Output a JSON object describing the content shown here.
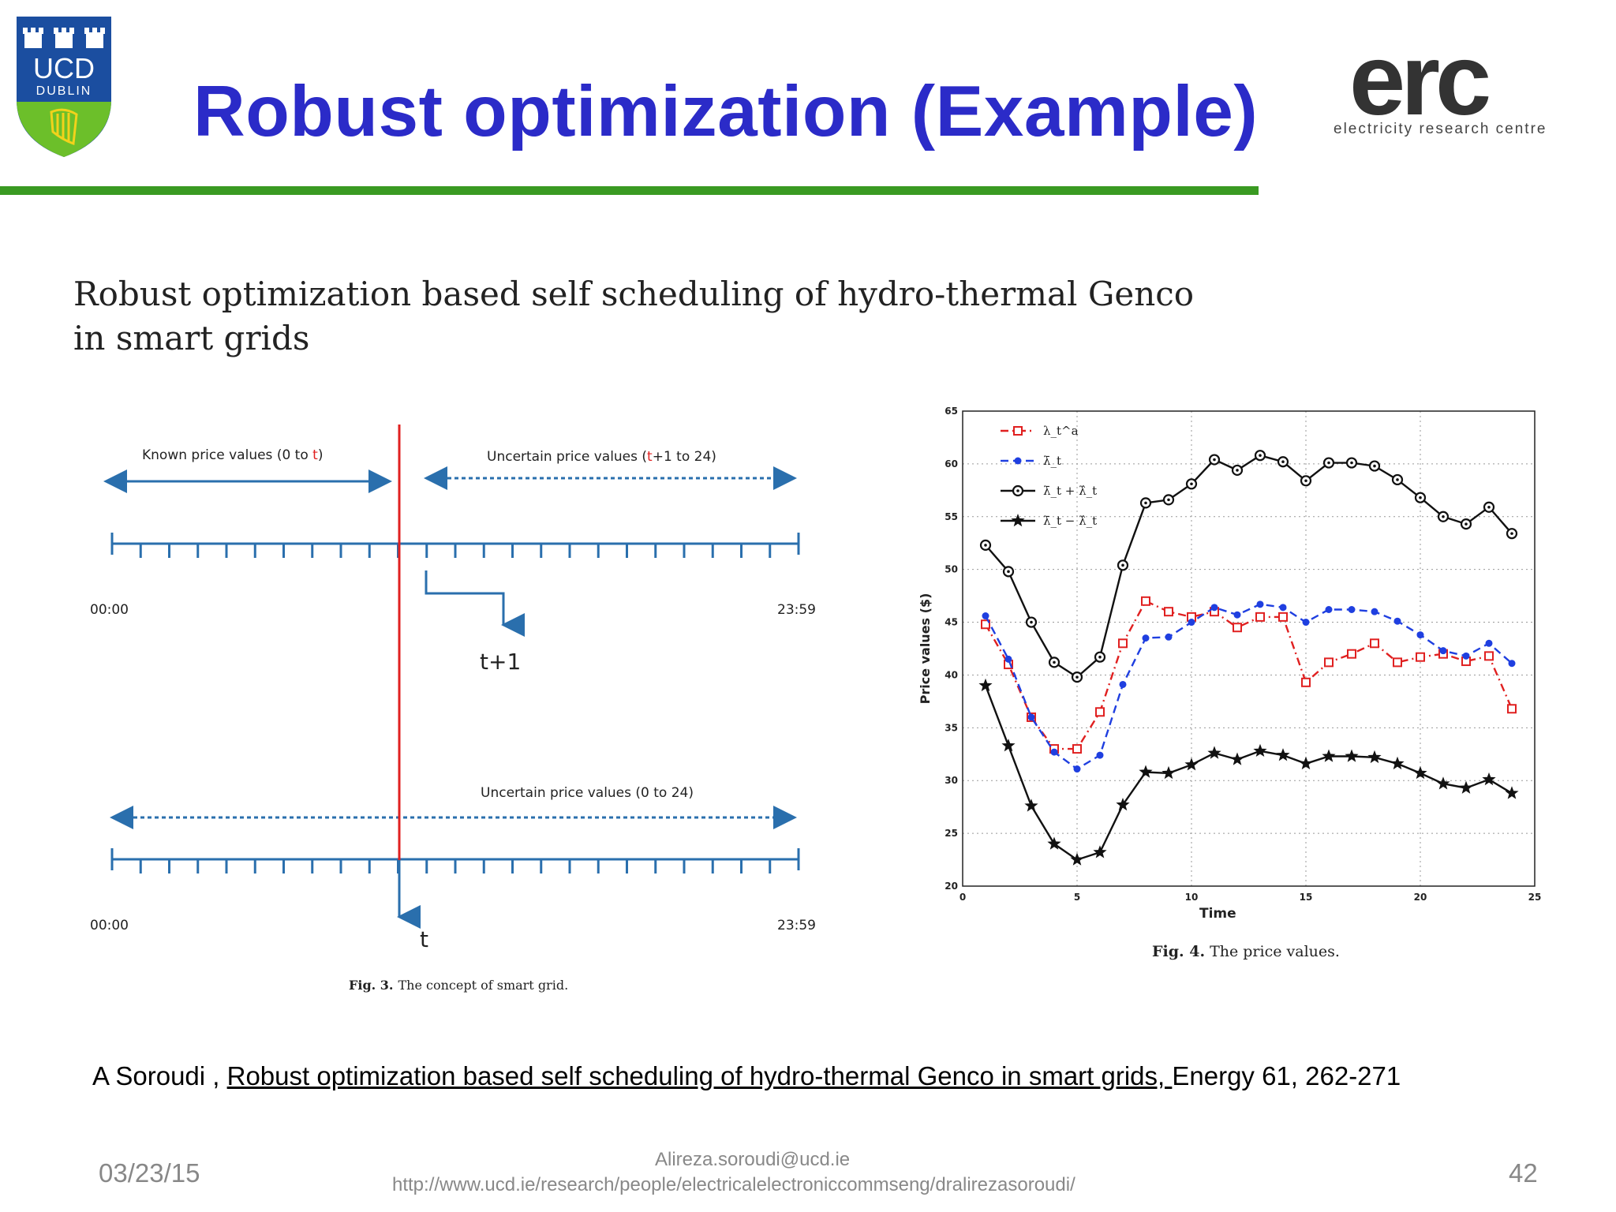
{
  "header": {
    "logo_text_main": "UCD",
    "logo_text_sub": "DUBLIN",
    "title": "Robust optimization (Example)",
    "erc_logo_word": "erc",
    "erc_logo_subtitle": "electricity research centre",
    "colors": {
      "title": "#2b2bc8",
      "rule": "#3a9a22",
      "ucd_blue": "#1b4ea0",
      "ucd_green": "#6cbf2a"
    }
  },
  "paper": {
    "title_line1": "Robust optimization based self scheduling of hydro-thermal Genco",
    "title_line2": "in smart grids"
  },
  "fig3": {
    "known_label": "Known price values (0 to ",
    "known_label_t": "t",
    "known_label_end": ")",
    "uncertain_top_label": "Uncertain price values (",
    "uncertain_top_label_t": "t",
    "uncertain_top_label_end": "+1 to 24)",
    "time_start": "00:00",
    "time_end": "23:59",
    "next_step_label": "t+1",
    "uncertain_bottom_label": "Uncertain price values (0 to 24)",
    "current_step_label": "t",
    "caption_bold": "Fig. 3.",
    "caption_text": "The concept of smart grid."
  },
  "fig4": {
    "caption_bold": "Fig. 4.",
    "caption_text": "The price values."
  },
  "chart_data": {
    "type": "line",
    "title": "",
    "xlabel": "Time",
    "ylabel": "Price values ($)",
    "xlim": [
      0,
      25
    ],
    "ylim": [
      20,
      65
    ],
    "xticks": [
      0,
      5,
      10,
      15,
      20,
      25
    ],
    "yticks": [
      20,
      25,
      30,
      35,
      40,
      45,
      50,
      55,
      60,
      65
    ],
    "grid": true,
    "legend_position": "top-left",
    "x": [
      1,
      2,
      3,
      4,
      5,
      6,
      7,
      8,
      9,
      10,
      11,
      12,
      13,
      14,
      15,
      16,
      17,
      18,
      19,
      20,
      21,
      22,
      23,
      24
    ],
    "series": [
      {
        "name": "λ_t^a",
        "color": "#e02020",
        "dash": "dashdot",
        "marker": "square",
        "values": [
          44.8,
          41,
          36,
          33,
          33,
          36.5,
          43,
          47,
          46,
          45.5,
          46,
          44.5,
          45.5,
          45.5,
          39.3,
          41.2,
          42,
          43,
          41.2,
          41.7,
          42,
          41.3,
          41.8,
          36.8
        ]
      },
      {
        "name": "λ̄_t",
        "color": "#1f3fe0",
        "dash": "dash",
        "marker": "dot",
        "values": [
          45.6,
          41.5,
          36,
          32.7,
          31.1,
          32.4,
          39.1,
          43.5,
          43.6,
          45,
          46.4,
          45.7,
          46.7,
          46.4,
          45,
          46.2,
          46.2,
          46,
          45.1,
          43.8,
          42.3,
          41.8,
          43,
          41.1
        ]
      },
      {
        "name": "λ̄_t + λ̂_t",
        "color": "#111111",
        "dash": "solid",
        "marker": "circle",
        "values": [
          52.3,
          49.8,
          45,
          41.2,
          39.8,
          41.7,
          50.4,
          56.3,
          56.6,
          58.1,
          60.4,
          59.4,
          60.8,
          60.2,
          58.4,
          60.1,
          60.1,
          59.8,
          58.5,
          56.8,
          55,
          54.3,
          55.9,
          53.4
        ]
      },
      {
        "name": "λ̄_t − λ̂_t",
        "color": "#111111",
        "dash": "solid",
        "marker": "star",
        "values": [
          39,
          33.3,
          27.6,
          24,
          22.5,
          23.2,
          27.7,
          30.8,
          30.7,
          31.5,
          32.6,
          32,
          32.8,
          32.4,
          31.6,
          32.3,
          32.3,
          32.2,
          31.6,
          30.7,
          29.7,
          29.3,
          30.1,
          28.8
        ]
      }
    ]
  },
  "reference": {
    "author": "A Soroudi , ",
    "link_text": "Robust optimization based self scheduling of hydro-thermal Genco in smart grids, ",
    "journal": "Energy 61, 262-271"
  },
  "footer": {
    "date": "03/23/15",
    "email": "Alireza.soroudi@ucd.ie",
    "url": "http://www.ucd.ie/research/people/electricalelectroniccommseng/dralirezasoroudi/",
    "page": "42"
  }
}
